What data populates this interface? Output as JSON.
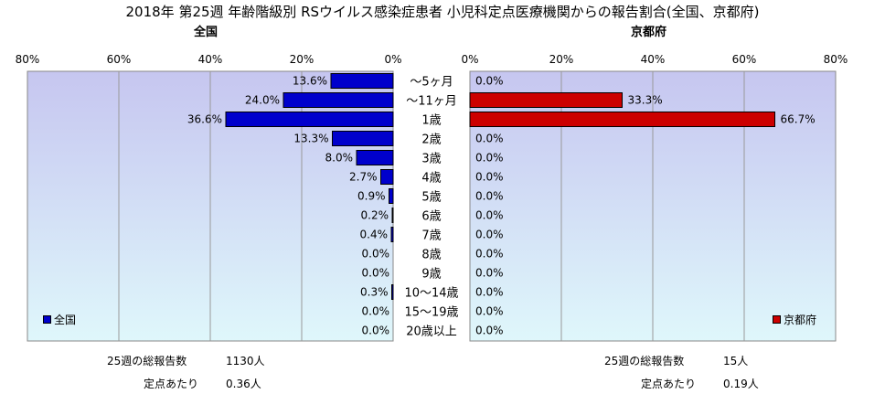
{
  "title": "2018年 第25週 年齢階級別 RSウイルス感染症患者 小児科定点医療機関からの報告割合(全国、京都府)",
  "left_panel_title": "全国",
  "right_panel_title": "京都府",
  "colors": {
    "national": "#0000cc",
    "kyoto": "#cc0000",
    "plot_top": "#c6c6f0",
    "plot_bottom": "#dff7fb"
  },
  "chart_data": {
    "type": "bar",
    "orientation": "horizontal",
    "categories": [
      "～5ヶ月",
      "～11ヶ月",
      "1歳",
      "2歳",
      "3歳",
      "4歳",
      "5歳",
      "6歳",
      "7歳",
      "8歳",
      "9歳",
      "10～14歳",
      "15～19歳",
      "20歳以上"
    ],
    "xlim": [
      0,
      80
    ],
    "tick_values": [
      80,
      60,
      40,
      20,
      0
    ],
    "tick_labels_left": [
      "80%",
      "60%",
      "40%",
      "20%",
      "0%"
    ],
    "tick_labels_right": [
      "0%",
      "20%",
      "40%",
      "60%",
      "80%"
    ],
    "series": [
      {
        "name": "全国",
        "values": [
          13.6,
          24.0,
          36.6,
          13.3,
          8.0,
          2.7,
          0.9,
          0.2,
          0.4,
          0.0,
          0.0,
          0.3,
          0.0,
          0.0
        ],
        "labels": [
          "13.6%",
          "24.0%",
          "36.6%",
          "13.3%",
          "8.0%",
          "2.7%",
          "0.9%",
          "0.2%",
          "0.4%",
          "0.0%",
          "0.0%",
          "0.3%",
          "0.0%",
          "0.0%"
        ]
      },
      {
        "name": "京都府",
        "values": [
          0.0,
          33.3,
          66.7,
          0.0,
          0.0,
          0.0,
          0.0,
          0.0,
          0.0,
          0.0,
          0.0,
          0.0,
          0.0,
          0.0
        ],
        "labels": [
          "0.0%",
          "33.3%",
          "66.7%",
          "0.0%",
          "0.0%",
          "0.0%",
          "0.0%",
          "0.0%",
          "0.0%",
          "0.0%",
          "0.0%",
          "0.0%",
          "0.0%",
          "0.0%"
        ]
      }
    ]
  },
  "summary": {
    "national": {
      "total_label": "25週の総報告数",
      "total_value": "1130人",
      "per_label": "定点あたり",
      "per_value": "0.36人"
    },
    "kyoto": {
      "total_label": "25週の総報告数",
      "total_value": "15人",
      "per_label": "定点あたり",
      "per_value": "0.19人"
    }
  }
}
